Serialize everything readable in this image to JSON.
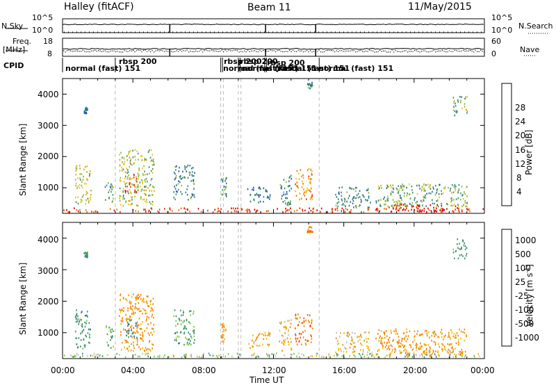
{
  "header": {
    "station": "Halley (fitACF)",
    "beam": "Beam 11",
    "date": "11/May/2015"
  },
  "status_panels": {
    "nsky_label": "N.Sky",
    "nsky_ticks": [
      "10^5",
      "10^0"
    ],
    "nsearch_label": "N.Search",
    "nsearch_ticks": [
      "10^5",
      "10^0"
    ],
    "freq_label": "Freq.",
    "freq_unit": "[MHz]",
    "freq_ticks": [
      "18",
      "8"
    ],
    "nave_label": "Nave",
    "nave_ticks": [
      "60",
      "0"
    ],
    "cpid_label": "CPID"
  },
  "cpid_segments": [
    {
      "label": "normal (fast)  151",
      "start_h": 0.0
    },
    {
      "label": "rbsp  200",
      "start_h": 3.0
    },
    {
      "label": "rbsp  200",
      "start_h": 9.0
    },
    {
      "label": "normal (fast)  151",
      "start_h": 9.1
    },
    {
      "label": "rbsp  200",
      "start_h": 10.0
    },
    {
      "label": "normal (fast)  151",
      "start_h": 10.1
    },
    {
      "label": "rbsp  200",
      "start_h": 11.5
    },
    {
      "label": "normal (fast)  151",
      "start_h": 11.6
    },
    {
      "label": "normal (fast)  151",
      "start_h": 14.6
    }
  ],
  "colors": {
    "power_scale": [
      "#1f3ed6",
      "#2a58b0",
      "#2f7a8a",
      "#3f8f6f",
      "#8fb83a",
      "#e8c21a",
      "#f2a000",
      "#f07000",
      "#e83a00",
      "#e00000"
    ],
    "velocity_scale": [
      "#e00000",
      "#f05000",
      "#f48a00",
      "#f2b800",
      "#bfbfbf",
      "#bfbfbf",
      "#7ac943",
      "#3f8f6f",
      "#2f6fa0",
      "#1f3ed6"
    ]
  },
  "chart_data": [
    {
      "type": "heatmap",
      "title": "Power",
      "xlabel": "",
      "ylabel": "Slant Range [km]",
      "x_range_h": [
        0,
        24
      ],
      "y_range_km": [
        180,
        4500
      ],
      "y_ticks": [
        "1000",
        "2000",
        "3000",
        "4000"
      ],
      "colorbar_label": "Power [dB]",
      "colorbar_ticks": [
        "4",
        "8",
        "12",
        "16",
        "20",
        "24",
        "28"
      ],
      "colorbar_range": [
        0,
        30
      ],
      "clusters": [
        {
          "t": [
            0.0,
            24.0
          ],
          "r": [
            200,
            330
          ],
          "v": 26
        },
        {
          "t": [
            0.7,
            1.6
          ],
          "r": [
            450,
            1700
          ],
          "v": 16
        },
        {
          "t": [
            2.4,
            2.9
          ],
          "r": [
            500,
            1200
          ],
          "v": 10
        },
        {
          "t": [
            3.2,
            5.2
          ],
          "r": [
            400,
            2200
          ],
          "v": 14
        },
        {
          "t": [
            3.5,
            4.2
          ],
          "r": [
            800,
            1400
          ],
          "v": 24
        },
        {
          "t": [
            6.3,
            7.5
          ],
          "r": [
            600,
            1700
          ],
          "v": 9
        },
        {
          "t": [
            9.0,
            9.3
          ],
          "r": [
            700,
            1300
          ],
          "v": 10
        },
        {
          "t": [
            10.5,
            11.8
          ],
          "r": [
            500,
            1000
          ],
          "v": 6
        },
        {
          "t": [
            12.3,
            13.0
          ],
          "r": [
            400,
            1400
          ],
          "v": 8
        },
        {
          "t": [
            13.2,
            14.2
          ],
          "r": [
            600,
            1600
          ],
          "v": 20
        },
        {
          "t": [
            13.9,
            14.2
          ],
          "r": [
            4150,
            4350
          ],
          "v": 8
        },
        {
          "t": [
            15.5,
            17.5
          ],
          "r": [
            350,
            1000
          ],
          "v": 9
        },
        {
          "t": [
            17.8,
            23.0
          ],
          "r": [
            350,
            1100
          ],
          "v": 12
        },
        {
          "t": [
            18.5,
            23.0
          ],
          "r": [
            220,
            450
          ],
          "v": 28
        },
        {
          "t": [
            22.2,
            23.0
          ],
          "r": [
            3300,
            3950
          ],
          "v": 12
        },
        {
          "t": [
            1.2,
            1.4
          ],
          "r": [
            3350,
            3550
          ],
          "v": 6
        }
      ]
    },
    {
      "type": "heatmap",
      "title": "Velocity",
      "xlabel": "Time UT",
      "ylabel": "Slant Range [km]",
      "x_range_h": [
        0,
        24
      ],
      "x_ticks": [
        "00:00",
        "04:00",
        "08:00",
        "12:00",
        "16:00",
        "20:00",
        "00:00"
      ],
      "y_range_km": [
        180,
        4500
      ],
      "y_ticks": [
        "1000",
        "2000",
        "3000",
        "4000"
      ],
      "colorbar_label": "Velocity [m s^-1]",
      "colorbar_ticks": [
        "1000",
        "500",
        "100",
        "25",
        "-25",
        "-100",
        "-500",
        "-1000"
      ],
      "colorbar_range": [
        -1000,
        1000
      ],
      "clusters": [
        {
          "t": [
            0.0,
            24.0
          ],
          "r": [
            200,
            330
          ],
          "v": 50
        },
        {
          "t": [
            0.7,
            1.6
          ],
          "r": [
            450,
            1700
          ],
          "v": 300
        },
        {
          "t": [
            2.4,
            2.9
          ],
          "r": [
            500,
            1200
          ],
          "v": 200
        },
        {
          "t": [
            3.2,
            5.2
          ],
          "r": [
            400,
            2200
          ],
          "v": -200
        },
        {
          "t": [
            3.5,
            4.2
          ],
          "r": [
            800,
            1400
          ],
          "v": 400
        },
        {
          "t": [
            6.3,
            7.5
          ],
          "r": [
            600,
            1700
          ],
          "v": 150
        },
        {
          "t": [
            9.0,
            9.3
          ],
          "r": [
            700,
            1300
          ],
          "v": -150
        },
        {
          "t": [
            10.5,
            11.8
          ],
          "r": [
            500,
            1000
          ],
          "v": -100
        },
        {
          "t": [
            12.3,
            13.0
          ],
          "r": [
            400,
            1400
          ],
          "v": -80
        },
        {
          "t": [
            13.2,
            14.2
          ],
          "r": [
            600,
            1600
          ],
          "v": -400
        },
        {
          "t": [
            13.9,
            14.2
          ],
          "r": [
            4150,
            4350
          ],
          "v": -600
        },
        {
          "t": [
            15.5,
            17.5
          ],
          "r": [
            350,
            1000
          ],
          "v": -60
        },
        {
          "t": [
            17.8,
            23.0
          ],
          "r": [
            350,
            1100
          ],
          "v": -150
        },
        {
          "t": [
            18.5,
            23.0
          ],
          "r": [
            220,
            450
          ],
          "v": -80
        },
        {
          "t": [
            22.2,
            23.0
          ],
          "r": [
            3300,
            3950
          ],
          "v": 300
        },
        {
          "t": [
            1.2,
            1.4
          ],
          "r": [
            3350,
            3550
          ],
          "v": 200
        }
      ]
    }
  ]
}
